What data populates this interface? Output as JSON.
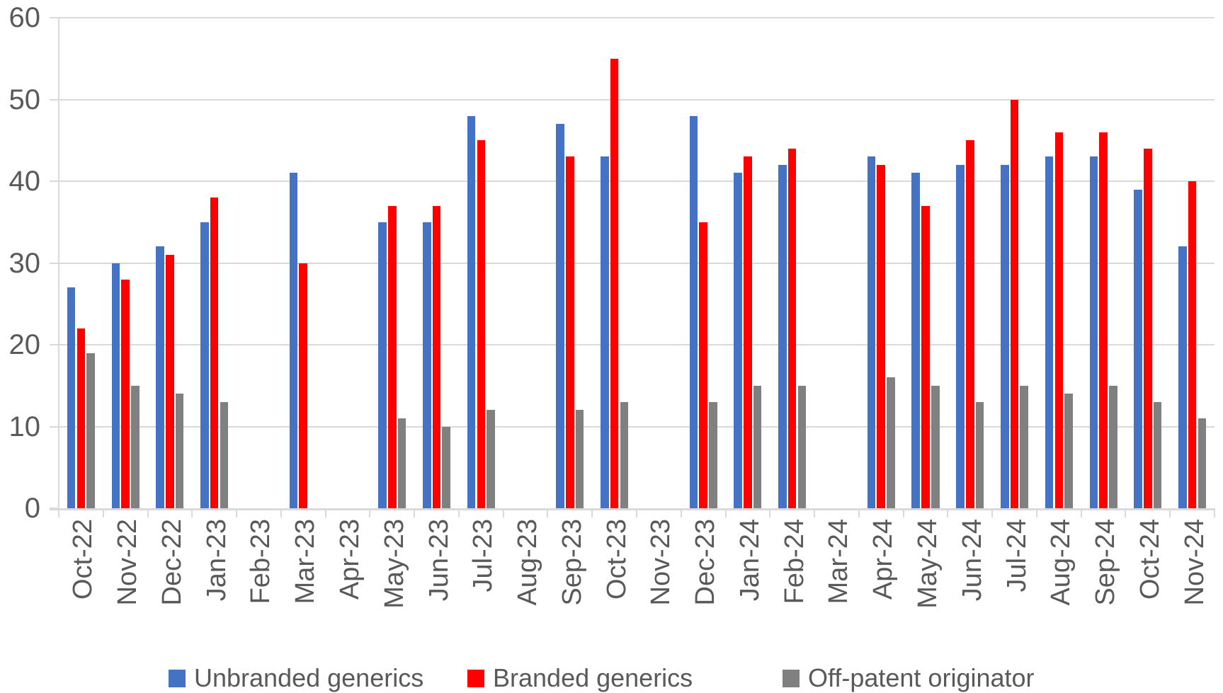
{
  "chart_data": {
    "type": "bar",
    "title": "",
    "xlabel": "",
    "ylabel": "",
    "categories": [
      "Oct-22",
      "Nov-22",
      "Dec-22",
      "Jan-23",
      "Feb-23",
      "Mar-23",
      "Apr-23",
      "May-23",
      "Jun-23",
      "Jul-23",
      "Aug-23",
      "Sep-23",
      "Oct-23",
      "Nov-23",
      "Dec-23",
      "Jan-24",
      "Feb-24",
      "Mar-24",
      "Apr-24",
      "May-24",
      "Jun-24",
      "Jul-24",
      "Aug-24",
      "Sep-24",
      "Oct-24",
      "Nov-24"
    ],
    "series": [
      {
        "name": "Unbranded generics",
        "color": "#4472C4",
        "values": [
          27,
          30,
          32,
          35,
          null,
          41,
          null,
          35,
          35,
          48,
          null,
          47,
          43,
          null,
          48,
          41,
          42,
          null,
          43,
          41,
          42,
          42,
          43,
          43,
          39,
          32
        ]
      },
      {
        "name": "Branded generics",
        "color": "#FF0000",
        "values": [
          22,
          28,
          31,
          38,
          null,
          30,
          null,
          37,
          37,
          45,
          null,
          43,
          55,
          null,
          35,
          43,
          44,
          null,
          42,
          37,
          45,
          50,
          46,
          46,
          44,
          40
        ]
      },
      {
        "name": "Off-patent originator",
        "color": "#808080",
        "values": [
          19,
          15,
          14,
          13,
          null,
          null,
          null,
          11,
          10,
          12,
          null,
          12,
          13,
          null,
          13,
          15,
          15,
          null,
          16,
          15,
          13,
          15,
          14,
          15,
          13,
          11
        ]
      }
    ],
    "ylim": [
      0,
      60
    ],
    "yticks": [
      0,
      10,
      20,
      30,
      40,
      50,
      60
    ],
    "grid": true,
    "legend_position": "bottom",
    "grid_color": "#D9D9D9",
    "axis_color": "#D9D9D9",
    "tick_label_color": "#595959",
    "legend_text_color": "#595959"
  }
}
